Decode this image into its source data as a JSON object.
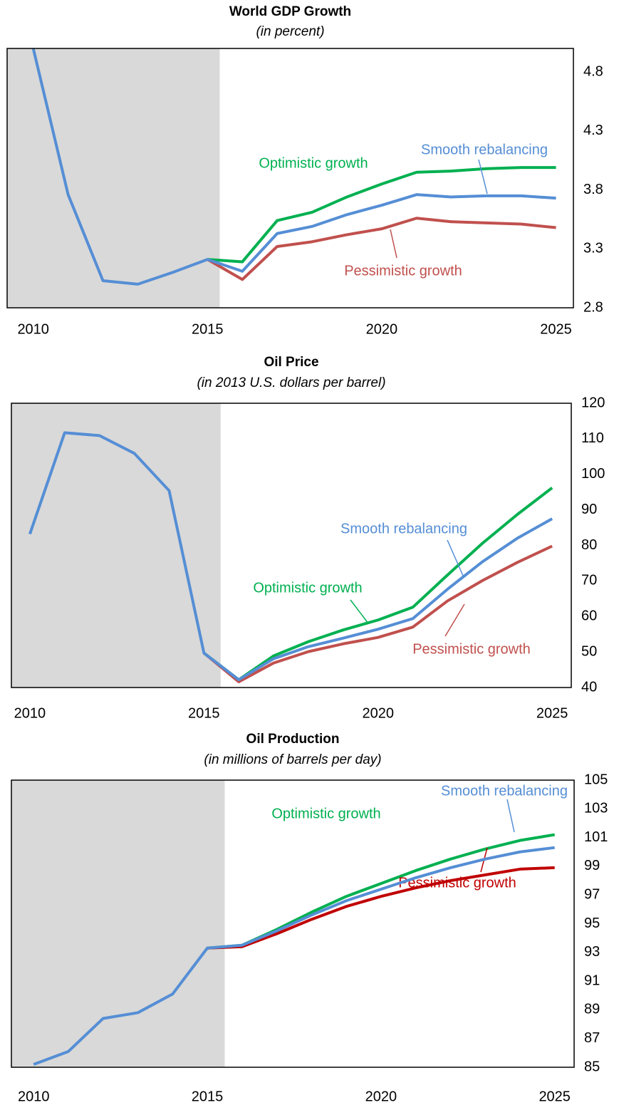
{
  "chart_data": [
    {
      "type": "line",
      "title": "World GDP Growth",
      "subtitle": "(in percent)",
      "x": [
        2010,
        2011,
        2012,
        2013,
        2014,
        2015,
        2016,
        2017,
        2018,
        2019,
        2020,
        2021,
        2022,
        2023,
        2024,
        2025
      ],
      "xlim": [
        2009.25,
        2025.5
      ],
      "xticks": [
        2010,
        2015,
        2020,
        2025
      ],
      "ylim": [
        2.8,
        5.0
      ],
      "yticks": [
        2.8,
        3.3,
        3.8,
        4.3,
        4.8
      ],
      "y_axis_side": "right",
      "shaded_xlim": [
        2009.25,
        2015.35
      ],
      "shade_color": "#d9d9d9",
      "series": [
        {
          "name": "Optimistic growth",
          "color": "#00b050",
          "values": [
            null,
            null,
            null,
            null,
            null,
            3.21,
            3.19,
            3.54,
            3.61,
            3.74,
            3.85,
            3.95,
            3.96,
            3.98,
            3.99,
            3.99
          ]
        },
        {
          "name": "Pessimistic growth",
          "color": "#c0504d",
          "values": [
            null,
            null,
            null,
            null,
            null,
            3.21,
            3.04,
            3.32,
            3.36,
            3.42,
            3.47,
            3.56,
            3.53,
            3.52,
            3.51,
            3.48
          ]
        },
        {
          "name": "Smooth rebalancing",
          "color": "#558ed5",
          "values": [
            5.0,
            3.76,
            3.03,
            3.0,
            3.1,
            3.21,
            3.11,
            3.43,
            3.49,
            3.59,
            3.67,
            3.76,
            3.74,
            3.75,
            3.75,
            3.73
          ]
        }
      ]
    },
    {
      "type": "line",
      "title": "Oil Price",
      "subtitle": "(in 2013 U.S. dollars per barrel)",
      "x": [
        2010,
        2011,
        2012,
        2013,
        2014,
        2015,
        2016,
        2017,
        2018,
        2019,
        2020,
        2021,
        2022,
        2023,
        2024,
        2025
      ],
      "xlim": [
        2009.47,
        2025.55
      ],
      "xticks": [
        2010,
        2015,
        2020,
        2025
      ],
      "ylim": [
        40,
        120
      ],
      "yticks": [
        40,
        50,
        60,
        70,
        80,
        90,
        100,
        110,
        120
      ],
      "y_axis_side": "right",
      "shaded_xlim": [
        2009.47,
        2015.48
      ],
      "shade_color": "#d9d9d9",
      "series": [
        {
          "name": "Optimistic growth",
          "color": "#00b050",
          "values": [
            null,
            null,
            null,
            null,
            null,
            49.7,
            42.2,
            48.9,
            52.9,
            56.2,
            59.0,
            62.6,
            71.7,
            80.6,
            88.7,
            96.2
          ]
        },
        {
          "name": "Pessimistic growth",
          "color": "#c0504d",
          "values": [
            null,
            null,
            null,
            null,
            null,
            49.7,
            41.6,
            46.9,
            50.1,
            52.3,
            54.1,
            57.0,
            64.4,
            70.1,
            75.2,
            79.8
          ]
        },
        {
          "name": "Smooth rebalancing",
          "color": "#558ed5",
          "values": [
            83.2,
            111.7,
            110.9,
            105.9,
            95.4,
            49.7,
            42.2,
            48.1,
            51.5,
            53.9,
            56.4,
            59.4,
            67.7,
            75.4,
            82.0,
            87.5
          ]
        }
      ]
    },
    {
      "type": "line",
      "title": "Oil Production",
      "subtitle": "(in millions of barrels per day)",
      "x": [
        2010,
        2011,
        2012,
        2013,
        2014,
        2015,
        2016,
        2017,
        2018,
        2019,
        2020,
        2021,
        2022,
        2023,
        2024,
        2025
      ],
      "xlim": [
        2009.36,
        2025.56
      ],
      "xticks": [
        2010,
        2015,
        2020,
        2025
      ],
      "ylim": [
        85,
        105
      ],
      "yticks": [
        85,
        87,
        89,
        91,
        93,
        95,
        97,
        99,
        101,
        103,
        105
      ],
      "y_axis_side": "right",
      "shaded_xlim": [
        2009.36,
        2015.5
      ],
      "shade_color": "#d9d9d9",
      "series": [
        {
          "name": "Optimistic growth",
          "color": "#00b050",
          "values": [
            null,
            null,
            null,
            null,
            null,
            93.3,
            93.5,
            94.6,
            95.8,
            96.9,
            97.8,
            98.7,
            99.5,
            100.2,
            100.8,
            101.2
          ]
        },
        {
          "name": "Pessimistic growth",
          "color": "#c00000",
          "values": [
            null,
            null,
            null,
            null,
            null,
            93.3,
            93.4,
            94.3,
            95.3,
            96.2,
            96.9,
            97.5,
            98.0,
            98.4,
            98.8,
            98.9
          ]
        },
        {
          "name": "Smooth rebalancing",
          "color": "#558ed5",
          "values": [
            85.2,
            86.1,
            88.4,
            88.8,
            90.1,
            93.3,
            93.5,
            94.5,
            95.6,
            96.6,
            97.4,
            98.2,
            98.9,
            99.5,
            100.0,
            100.3
          ]
        }
      ]
    }
  ]
}
